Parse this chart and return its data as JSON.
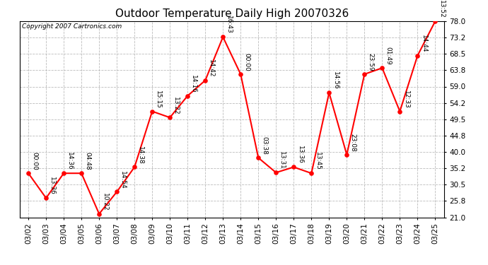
{
  "title": "Outdoor Temperature Daily High 20070326",
  "copyright": "Copyright 2007 Cartronics.com",
  "dates": [
    "03/02",
    "03/03",
    "03/04",
    "03/05",
    "03/06",
    "03/07",
    "03/08",
    "03/09",
    "03/10",
    "03/11",
    "03/12",
    "03/13",
    "03/14",
    "03/15",
    "03/16",
    "03/17",
    "03/18",
    "03/19",
    "03/20",
    "03/21",
    "03/22",
    "03/23",
    "03/24",
    "03/25"
  ],
  "values": [
    33.8,
    26.6,
    33.8,
    33.8,
    22.0,
    28.4,
    35.6,
    51.8,
    50.0,
    56.3,
    60.8,
    73.4,
    62.6,
    38.3,
    34.0,
    35.6,
    33.8,
    57.2,
    39.2,
    62.6,
    64.4,
    51.8,
    68.0,
    78.0
  ],
  "labels": [
    "00:00",
    "13:36",
    "14:36",
    "04:48",
    "10:22",
    "14:54",
    "14:38",
    "15:15",
    "13:22",
    "14:16",
    "14:42",
    "16:43",
    "00:00",
    "03:38",
    "13:31",
    "13:36",
    "13:45",
    "14:56",
    "23:08",
    "23:59",
    "01:49",
    "12:33",
    "14:44",
    "13:52"
  ],
  "yticks": [
    21.0,
    25.8,
    30.5,
    35.2,
    40.0,
    44.8,
    49.5,
    54.2,
    59.0,
    63.8,
    68.5,
    73.2,
    78.0
  ],
  "ylim": [
    21.0,
    78.0
  ],
  "line_color": "red",
  "marker_color": "red",
  "bg_color": "white",
  "grid_color": "#bbbbbb",
  "title_fontsize": 11,
  "label_fontsize": 6.5,
  "tick_fontsize": 7.5,
  "copyright_fontsize": 6.5
}
